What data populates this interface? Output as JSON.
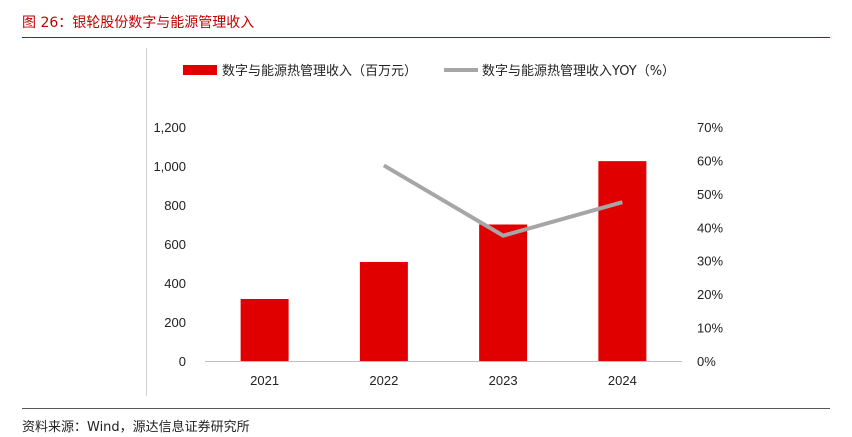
{
  "figure": {
    "title": "图 26：银轮股份数字与能源管理收入",
    "source": "资料来源：Wind，源达信息证券研究所"
  },
  "colors": {
    "bar": "#e00000",
    "line": "#a6a6a6",
    "accent": "#c00000"
  },
  "chart_data": {
    "type": "bar",
    "categories": [
      "2021",
      "2022",
      "2023",
      "2024"
    ],
    "series": [
      {
        "name": "数字与能源热管理收入（百万元）",
        "type": "bar",
        "axis": "left",
        "values": [
          318,
          508,
          700,
          1025
        ]
      },
      {
        "name": "数字与能源热管理收入YOY（%）",
        "type": "line",
        "axis": "right",
        "values": [
          null,
          58.5,
          37.5,
          47.5
        ]
      }
    ],
    "y_left": {
      "range": [
        0,
        1200
      ],
      "ticks": [
        0,
        200,
        400,
        600,
        800,
        1000,
        1200
      ],
      "tick_labels": [
        "0",
        "200",
        "400",
        "600",
        "800",
        "1,000",
        "1,200"
      ]
    },
    "y_right": {
      "range": [
        0,
        70
      ],
      "ticks": [
        0,
        10,
        20,
        30,
        40,
        50,
        60,
        70
      ],
      "tick_labels": [
        "0%",
        "10%",
        "20%",
        "30%",
        "40%",
        "50%",
        "60%",
        "70%"
      ]
    },
    "title": "",
    "xlabel": "",
    "ylabel": "",
    "grid": false,
    "legend": "top-center"
  }
}
